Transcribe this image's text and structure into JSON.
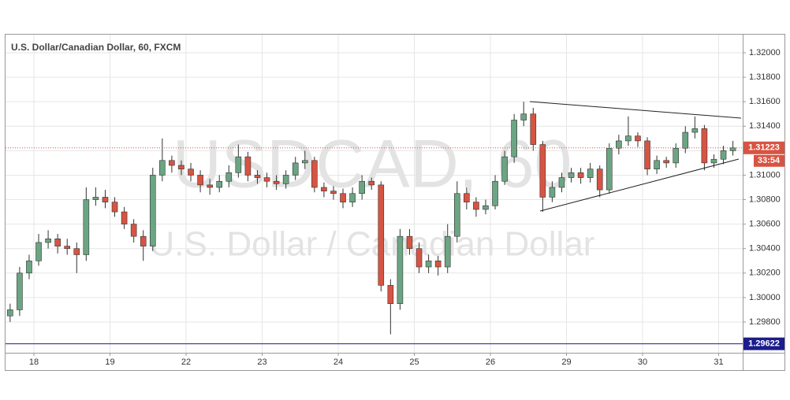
{
  "chart_data": {
    "type": "candlestick",
    "title": "U.S. Dollar/Canadian Dollar, 60, FXCM",
    "watermark": "USDCAD, 60",
    "watermark_subtitle": "U.S. Dollar / Canadian Dollar",
    "up_color": "#6ba583",
    "down_color": "#d75442",
    "x": [
      -0.3125,
      -0.1875,
      -0.0625,
      0.0625,
      0.1875,
      0.3125,
      0.4375,
      0.5625,
      0.6875,
      0.8125,
      0.9375,
      1.0625,
      1.1875,
      1.3125,
      1.4375,
      1.5625,
      1.6875,
      1.8125,
      1.9375,
      2.0625,
      2.1875,
      2.3125,
      2.4375,
      2.5625,
      2.6875,
      2.8125,
      2.9375,
      3.0625,
      3.1875,
      3.3125,
      3.4375,
      3.5625,
      3.6875,
      3.8125,
      3.9375,
      4.0625,
      4.1875,
      4.3125,
      4.4375,
      4.5625,
      4.6875,
      4.8125,
      4.9375,
      5.0625,
      5.1875,
      5.3125,
      5.4375,
      5.5625,
      5.6875,
      5.8125,
      5.9375,
      6.0625,
      6.1875,
      6.3125,
      6.4375,
      6.5625,
      6.6875,
      6.8125,
      6.9375,
      7.0625,
      7.1875,
      7.3125,
      7.4375,
      7.5625,
      7.6875,
      7.8125,
      7.9375,
      8.0625,
      8.1875,
      8.3125,
      8.4375,
      8.5625,
      8.6875,
      8.8125,
      8.9375,
      9.0625,
      9.1875
    ],
    "open": [
      1.2985,
      1.299,
      1.302,
      1.303,
      1.3045,
      1.3048,
      1.3042,
      1.304,
      1.3035,
      1.308,
      1.3082,
      1.3078,
      1.307,
      1.306,
      1.305,
      1.3042,
      1.31,
      1.3112,
      1.3108,
      1.3105,
      1.31,
      1.3092,
      1.309,
      1.3095,
      1.3102,
      1.3115,
      1.31,
      1.3098,
      1.3095,
      1.3093,
      1.31,
      1.311,
      1.3112,
      1.309,
      1.3087,
      1.3085,
      1.3078,
      1.3085,
      1.3095,
      1.3092,
      1.301,
      1.2995,
      1.305,
      1.304,
      1.3025,
      1.303,
      1.3025,
      1.305,
      1.3085,
      1.3078,
      1.3072,
      1.3075,
      1.3095,
      1.3115,
      1.3145,
      1.315,
      1.3125,
      1.3082,
      1.309,
      1.3098,
      1.3102,
      1.3098,
      1.3105,
      1.3088,
      1.3122,
      1.3128,
      1.3132,
      1.3128,
      1.3105,
      1.3112,
      1.311,
      1.3122,
      1.3135,
      1.3138,
      1.311,
      1.3113,
      1.312
    ],
    "high": [
      1.2995,
      1.3025,
      1.3035,
      1.3052,
      1.3055,
      1.3052,
      1.3048,
      1.3045,
      1.309,
      1.309,
      1.3088,
      1.3082,
      1.3074,
      1.3064,
      1.3055,
      1.3106,
      1.313,
      1.3116,
      1.3112,
      1.311,
      1.3104,
      1.3097,
      1.31,
      1.3108,
      1.3125,
      1.3119,
      1.3104,
      1.3102,
      1.31,
      1.3104,
      1.3115,
      1.312,
      1.3115,
      1.3094,
      1.3091,
      1.3089,
      1.309,
      1.31,
      1.3098,
      1.3095,
      1.3015,
      1.3056,
      1.3056,
      1.3045,
      1.3035,
      1.3034,
      1.306,
      1.3095,
      1.309,
      1.3082,
      1.308,
      1.31,
      1.312,
      1.315,
      1.316,
      1.3155,
      1.3128,
      1.3095,
      1.3102,
      1.3106,
      1.3106,
      1.311,
      1.3108,
      1.3126,
      1.3133,
      1.3148,
      1.3135,
      1.3131,
      1.3116,
      1.3115,
      1.3126,
      1.314,
      1.3148,
      1.3141,
      1.3117,
      1.3124,
      1.3128
    ],
    "low": [
      1.298,
      1.2985,
      1.3015,
      1.3026,
      1.304,
      1.3036,
      1.3035,
      1.302,
      1.303,
      1.3075,
      1.3073,
      1.3066,
      1.3056,
      1.3045,
      1.303,
      1.3038,
      1.3095,
      1.3102,
      1.31,
      1.3095,
      1.3086,
      1.3084,
      1.3086,
      1.309,
      1.3098,
      1.3095,
      1.3093,
      1.309,
      1.3088,
      1.3089,
      1.3096,
      1.3105,
      1.3086,
      1.3082,
      1.308,
      1.3073,
      1.3074,
      1.308,
      1.3088,
      1.3005,
      1.297,
      1.299,
      1.3035,
      1.302,
      1.302,
      1.3018,
      1.302,
      1.3045,
      1.3072,
      1.3066,
      1.3068,
      1.3072,
      1.3092,
      1.311,
      1.314,
      1.312,
      1.307,
      1.3078,
      1.3086,
      1.3094,
      1.3093,
      1.3094,
      1.3082,
      1.3085,
      1.3117,
      1.3124,
      1.3123,
      1.31,
      1.3101,
      1.3106,
      1.3106,
      1.3118,
      1.313,
      1.3104,
      1.3106,
      1.3109,
      1.3116
    ],
    "close": [
      1.299,
      1.302,
      1.303,
      1.3045,
      1.3048,
      1.3042,
      1.304,
      1.3035,
      1.308,
      1.3082,
      1.3078,
      1.307,
      1.306,
      1.305,
      1.3042,
      1.31,
      1.3112,
      1.3108,
      1.3105,
      1.31,
      1.3092,
      1.309,
      1.3095,
      1.3102,
      1.3115,
      1.31,
      1.3098,
      1.3095,
      1.3093,
      1.31,
      1.311,
      1.3112,
      1.309,
      1.3087,
      1.3085,
      1.3078,
      1.3085,
      1.3095,
      1.3092,
      1.301,
      1.2995,
      1.305,
      1.304,
      1.3025,
      1.303,
      1.3025,
      1.305,
      1.3085,
      1.3078,
      1.3072,
      1.3075,
      1.3095,
      1.3115,
      1.3145,
      1.315,
      1.3125,
      1.3082,
      1.309,
      1.3098,
      1.3102,
      1.3098,
      1.3105,
      1.3088,
      1.3122,
      1.3128,
      1.3132,
      1.3128,
      1.3105,
      1.3112,
      1.311,
      1.3122,
      1.3135,
      1.3138,
      1.311,
      1.3113,
      1.312,
      1.31223
    ],
    "xlim": [
      -0.373,
      9.316
    ],
    "xticks": [
      {
        "value": 0,
        "label": "18"
      },
      {
        "value": 1,
        "label": "19"
      },
      {
        "value": 2,
        "label": "22"
      },
      {
        "value": 3,
        "label": "23"
      },
      {
        "value": 4,
        "label": "24"
      },
      {
        "value": 5,
        "label": "25"
      },
      {
        "value": 6,
        "label": "26"
      },
      {
        "value": 7,
        "label": "29"
      },
      {
        "value": 8,
        "label": "30"
      },
      {
        "value": 9,
        "label": "31"
      }
    ],
    "ylim": [
      1.29549,
      1.32148
    ],
    "yticks": [
      {
        "value": 1.298,
        "label": "1.29800"
      },
      {
        "value": 1.3,
        "label": "1.30000"
      },
      {
        "value": 1.302,
        "label": "1.30200"
      },
      {
        "value": 1.304,
        "label": "1.30400"
      },
      {
        "value": 1.306,
        "label": "1.30600"
      },
      {
        "value": 1.308,
        "label": "1.30800"
      },
      {
        "value": 1.31,
        "label": "1.31000"
      },
      {
        "value": 1.312,
        "label": "1.31200"
      },
      {
        "value": 1.314,
        "label": "1.31400"
      },
      {
        "value": 1.316,
        "label": "1.31600"
      },
      {
        "value": 1.318,
        "label": "1.31800"
      },
      {
        "value": 1.32,
        "label": "1.32000"
      }
    ],
    "grid": true,
    "last_price": 1.31223,
    "countdown": "33:54",
    "horizontal_line": 1.29622
  }
}
